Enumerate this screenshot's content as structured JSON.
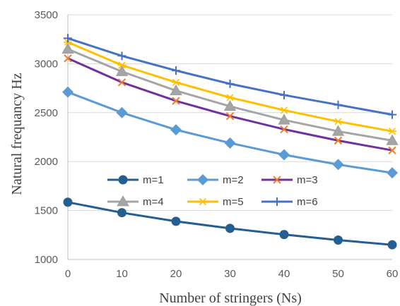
{
  "chart_data": {
    "type": "line",
    "title": "",
    "xlabel": "Number of stringers (Ns)",
    "ylabel": "Natural frequancy  Hz",
    "x": [
      0,
      10,
      20,
      30,
      40,
      50,
      60
    ],
    "xlim": [
      0,
      60
    ],
    "ylim": [
      1000,
      3500
    ],
    "xticks": [
      "0",
      "10",
      "20",
      "30",
      "40",
      "50",
      "60"
    ],
    "yticks": [
      "1000",
      "1500",
      "2000",
      "2500",
      "3000",
      "3500"
    ],
    "grid": "horizontal",
    "legend_position": "inside-lower-center",
    "series": [
      {
        "name": "m=1",
        "color": "#255e91",
        "marker": "circle",
        "values": [
          1585,
          1478,
          1390,
          1318,
          1255,
          1198,
          1150
        ]
      },
      {
        "name": "m=2",
        "color": "#5b9bd5",
        "marker": "diamond",
        "values": [
          2710,
          2500,
          2325,
          2190,
          2070,
          1970,
          1885
        ]
      },
      {
        "name": "m=3",
        "color": "#7030a0",
        "marker": "x",
        "marker_color": "#ed7d31",
        "values": [
          3055,
          2810,
          2620,
          2465,
          2330,
          2215,
          2115
        ]
      },
      {
        "name": "m=4",
        "color": "#a5a5a5",
        "marker": "triangle",
        "values": [
          3150,
          2920,
          2725,
          2565,
          2425,
          2310,
          2215
        ]
      },
      {
        "name": "m=5",
        "color": "#ffc000",
        "marker": "asterisk",
        "values": [
          3220,
          2985,
          2810,
          2655,
          2525,
          2410,
          2310
        ]
      },
      {
        "name": "m=6",
        "color": "#4472c4",
        "marker": "plus",
        "values": [
          3260,
          3080,
          2930,
          2795,
          2680,
          2580,
          2480
        ]
      }
    ]
  }
}
